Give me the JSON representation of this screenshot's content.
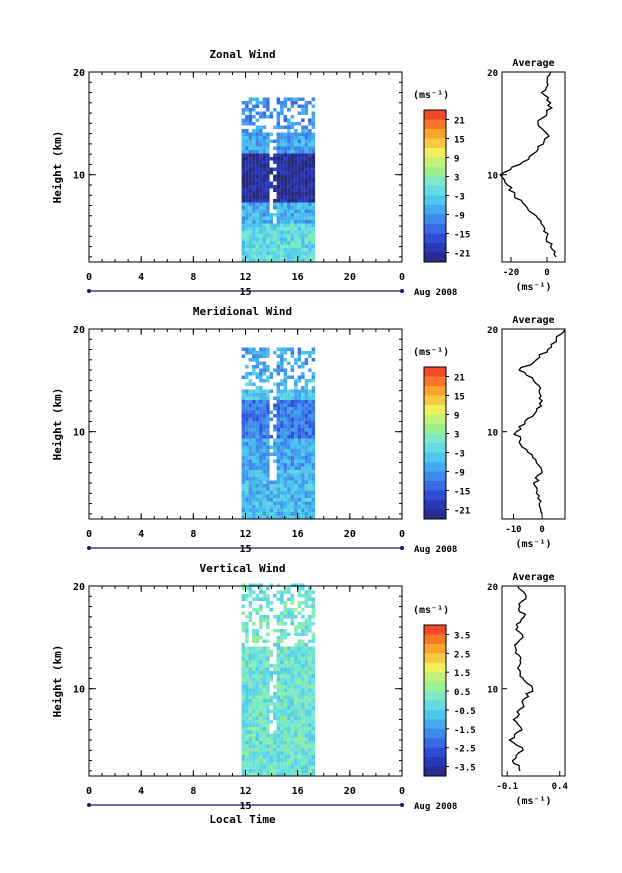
{
  "figure": {
    "date_label": "Aug 2008",
    "day_label": "15",
    "xlabel": "Local Time",
    "xticks": [
      "0",
      "4",
      "8",
      "12",
      "16",
      "20",
      "0"
    ],
    "height_label": "Height (km)",
    "height_ticks": [
      "20",
      "10"
    ]
  },
  "chart_data": [
    {
      "type": "heatmap",
      "title": "Zonal Wind",
      "xlabel": "Local Time",
      "ylabel": "Height (km)",
      "xlim": [
        0,
        24
      ],
      "ylim": [
        1.5,
        20
      ],
      "data_time_range": [
        11.7,
        17.3
      ],
      "colorbar": {
        "unit": "(ms⁻¹)",
        "ticks": [
          "21",
          "15",
          "9",
          "3",
          "-3",
          "-9",
          "-15",
          "-21"
        ],
        "range": [
          -24,
          24
        ]
      },
      "description_layers": [
        {
          "h0": 1.5,
          "h1": 5.0,
          "value": -2
        },
        {
          "h0": 5.0,
          "h1": 7.0,
          "value": -7
        },
        {
          "h0": 7.0,
          "h1": 12.0,
          "value": -22
        },
        {
          "h0": 12.0,
          "h1": 14.5,
          "value": -8
        },
        {
          "h0": 14.5,
          "h1": 17.5,
          "value": -10
        }
      ],
      "average": {
        "title": "Average",
        "xlabel": "(ms⁻¹)",
        "xticks": [
          "-20",
          "0"
        ],
        "xlim": [
          -25,
          10
        ],
        "profile": [
          [
            2,
            5
          ],
          [
            3,
            2
          ],
          [
            4,
            0
          ],
          [
            5,
            -2
          ],
          [
            6,
            -6
          ],
          [
            7,
            -12
          ],
          [
            8,
            -18
          ],
          [
            9,
            -22
          ],
          [
            10,
            -26
          ],
          [
            11,
            -15
          ],
          [
            12,
            -8
          ],
          [
            13,
            -2
          ],
          [
            14,
            0
          ],
          [
            15,
            -5
          ],
          [
            16,
            0
          ],
          [
            17,
            2
          ],
          [
            18,
            -3
          ],
          [
            19,
            0
          ],
          [
            20,
            2
          ]
        ]
      }
    },
    {
      "type": "heatmap",
      "title": "Meridional Wind",
      "xlabel": "Local Time",
      "ylabel": "Height (km)",
      "xlim": [
        0,
        24
      ],
      "ylim": [
        1.5,
        20
      ],
      "data_time_range": [
        11.7,
        17.3
      ],
      "colorbar": {
        "unit": "(ms⁻¹)",
        "ticks": [
          "21",
          "15",
          "9",
          "3",
          "-3",
          "-9",
          "-15",
          "-21"
        ],
        "range": [
          -24,
          24
        ]
      },
      "description_layers": [
        {
          "h0": 1.5,
          "h1": 6.0,
          "value": -6
        },
        {
          "h0": 6.0,
          "h1": 9.0,
          "value": -8
        },
        {
          "h0": 9.0,
          "h1": 13.0,
          "value": -12
        },
        {
          "h0": 13.0,
          "h1": 15.0,
          "value": -5
        },
        {
          "h0": 15.0,
          "h1": 18.0,
          "value": -8
        }
      ],
      "average": {
        "title": "Average",
        "xlabel": "(ms⁻¹)",
        "xticks": [
          "-10",
          "0"
        ],
        "xlim": [
          -14,
          8
        ],
        "profile": [
          [
            2,
            0
          ],
          [
            3,
            -1
          ],
          [
            4,
            -2
          ],
          [
            5,
            -3
          ],
          [
            6,
            0
          ],
          [
            7,
            -2
          ],
          [
            8,
            -5
          ],
          [
            9,
            -8
          ],
          [
            10,
            -9
          ],
          [
            11,
            -6
          ],
          [
            12,
            -2
          ],
          [
            13,
            0
          ],
          [
            14,
            -1
          ],
          [
            15,
            -3
          ],
          [
            16,
            -8
          ],
          [
            17,
            -2
          ],
          [
            18,
            2
          ],
          [
            19,
            5
          ],
          [
            20,
            8
          ]
        ]
      }
    },
    {
      "type": "heatmap",
      "title": "Vertical Wind",
      "xlabel": "Local Time",
      "ylabel": "Height (km)",
      "xlim": [
        0,
        24
      ],
      "ylim": [
        1.5,
        20
      ],
      "data_time_range": [
        11.7,
        17.3
      ],
      "colorbar": {
        "unit": "(ms⁻¹)",
        "ticks": [
          "3.5",
          "2.5",
          "1.5",
          "0.5",
          "-0.5",
          "-1.5",
          "-2.5",
          "-3.5"
        ],
        "range": [
          -4,
          4
        ]
      },
      "description_layers": [
        {
          "h0": 1.5,
          "h1": 20.0,
          "value": 0.0
        }
      ],
      "average": {
        "title": "Average",
        "xlabel": "(ms⁻¹)",
        "xticks": [
          "-0.1",
          "0.4"
        ],
        "xlim": [
          -0.15,
          0.45
        ],
        "profile": [
          [
            2,
            0.02
          ],
          [
            3,
            -0.05
          ],
          [
            4,
            0.05
          ],
          [
            5,
            -0.08
          ],
          [
            6,
            0.04
          ],
          [
            7,
            -0.04
          ],
          [
            8,
            0.02
          ],
          [
            9,
            0.06
          ],
          [
            10,
            0.14
          ],
          [
            11,
            0.05
          ],
          [
            12,
            0.0
          ],
          [
            13,
            0.03
          ],
          [
            14,
            -0.02
          ],
          [
            15,
            0.05
          ],
          [
            16,
            0.0
          ],
          [
            17,
            0.06
          ],
          [
            18,
            0.02
          ],
          [
            19,
            0.08
          ],
          [
            20,
            0.0
          ]
        ]
      }
    }
  ]
}
